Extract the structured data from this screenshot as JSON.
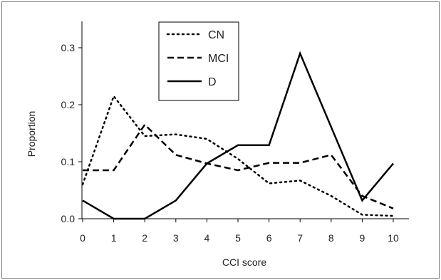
{
  "chart_data": {
    "type": "line",
    "title": "",
    "xlabel": "CCI score",
    "ylabel": "Proportion",
    "x": [
      0,
      1,
      2,
      3,
      4,
      5,
      6,
      7,
      8,
      9,
      10
    ],
    "xlim": [
      0,
      10
    ],
    "ylim": [
      0,
      0.35
    ],
    "xticks": [
      "0",
      "1",
      "2",
      "3",
      "4",
      "5",
      "6",
      "7",
      "8",
      "9",
      "10"
    ],
    "yticks": [
      {
        "value": 0.0,
        "label": "0.0"
      },
      {
        "value": 0.1,
        "label": "0.1"
      },
      {
        "value": 0.2,
        "label": "0.2"
      },
      {
        "value": 0.3,
        "label": "0.3"
      }
    ],
    "grid": false,
    "legend_position": "top-center",
    "series": [
      {
        "name": "CN",
        "style": "dotted",
        "values": [
          0.06,
          0.215,
          0.145,
          0.148,
          0.14,
          0.105,
          0.062,
          0.067,
          0.04,
          0.007,
          0.005
        ]
      },
      {
        "name": "MCI",
        "style": "dashed",
        "values": [
          0.085,
          0.085,
          0.165,
          0.112,
          0.097,
          0.085,
          0.098,
          0.098,
          0.112,
          0.04,
          0.018
        ]
      },
      {
        "name": "D",
        "style": "solid",
        "values": [
          0.032,
          0.0,
          0.0,
          0.032,
          0.097,
          0.129,
          0.129,
          0.29,
          0.161,
          0.032,
          0.097
        ]
      }
    ]
  }
}
